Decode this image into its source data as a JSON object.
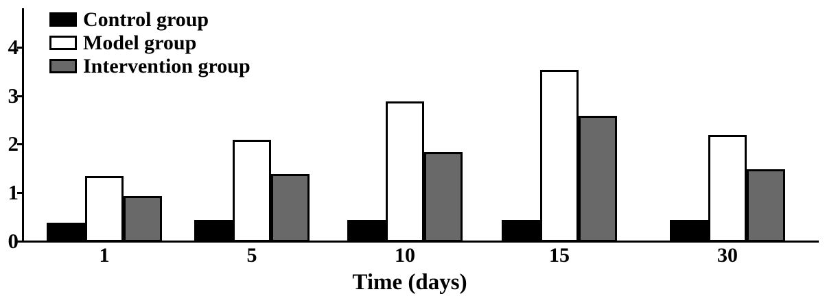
{
  "chart_data": {
    "type": "bar",
    "categories": [
      "1",
      "5",
      "10",
      "15",
      "30"
    ],
    "series": [
      {
        "name": "Control group",
        "color": "#000000",
        "values": [
          0.4,
          0.45,
          0.45,
          0.45,
          0.45
        ]
      },
      {
        "name": "Model group",
        "color": "#ffffff",
        "values": [
          1.35,
          2.1,
          2.9,
          3.55,
          2.2
        ]
      },
      {
        "name": "Intervention group",
        "color": "#696969",
        "values": [
          0.95,
          1.4,
          1.85,
          2.6,
          1.5
        ]
      }
    ],
    "title": "",
    "xlabel": "Time (days)",
    "ylabel": "",
    "ylim": [
      0,
      4.8
    ],
    "yticks": [
      0,
      1,
      2,
      3,
      4
    ],
    "legend_position": "top-left",
    "grid": false,
    "axis_color": "#000000",
    "bar_border_color": "#000000",
    "background": "#ffffff"
  }
}
